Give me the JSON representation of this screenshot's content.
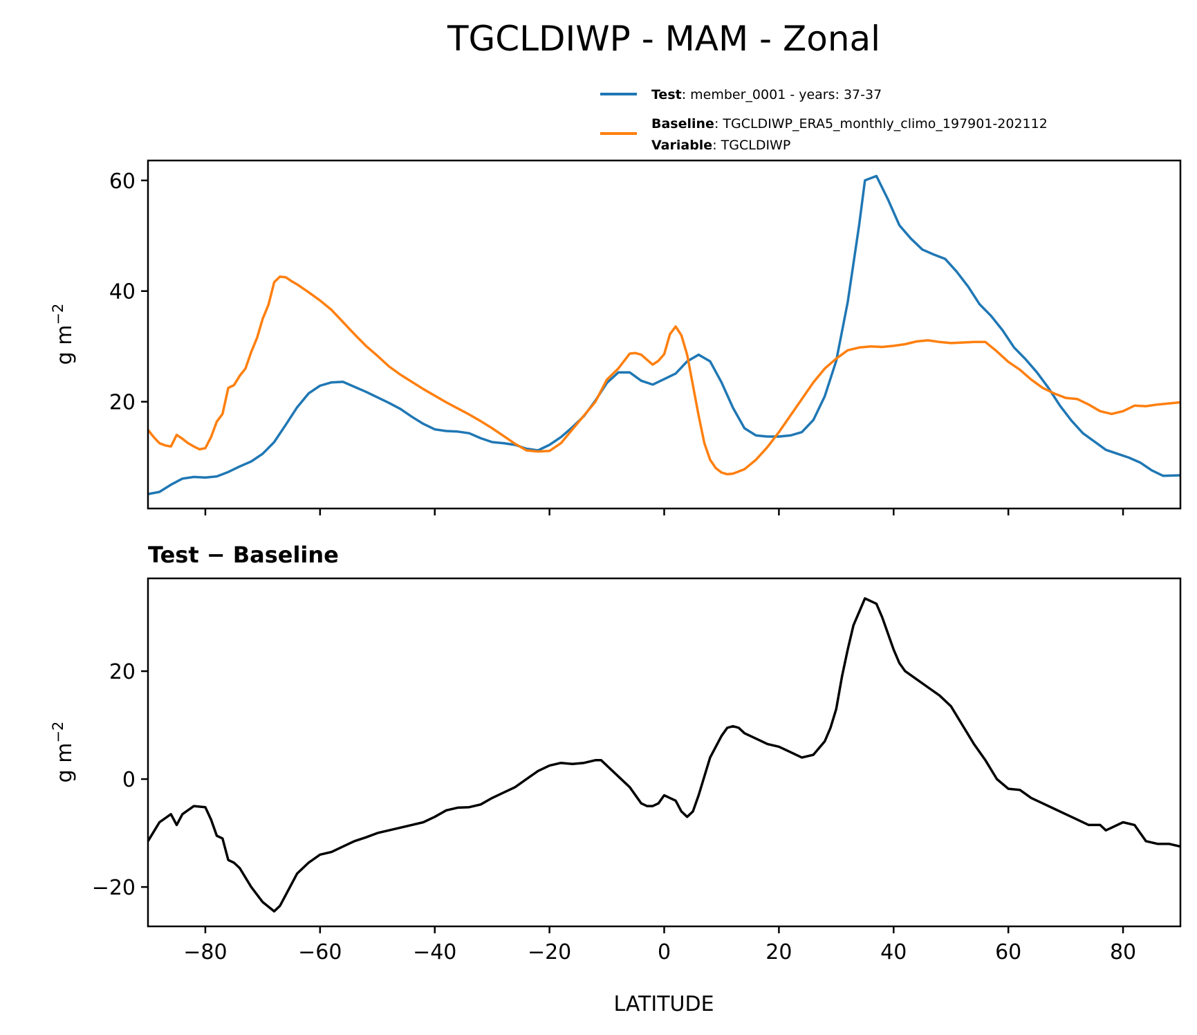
{
  "chart_data": [
    {
      "type": "line",
      "panel": "top",
      "title": "TGCLDIWP - MAM - Zonal",
      "xlabel": "",
      "ylabel": "g m⁻²",
      "xlim": [
        -90,
        90
      ],
      "ylim": [
        0.7,
        63.6
      ],
      "xticks": [
        -80,
        -60,
        -40,
        -20,
        0,
        20,
        40,
        60,
        80
      ],
      "yticks": [
        20,
        40,
        60
      ],
      "ytick_labels": [
        "20",
        "40",
        "60"
      ],
      "grid": false,
      "legend": {
        "placement": "top-right, above axes",
        "entries": [
          {
            "series": "Test",
            "bold": "Test",
            "text": ": member_0001 - years: 37-37"
          },
          {
            "series": "Baseline",
            "bold": "Baseline",
            "text": ": TGCLDIWP_ERA5_monthly_climo_197901-202112",
            "bold2": "Variable",
            "text2": ": TGCLDIWP"
          }
        ]
      },
      "series": [
        {
          "name": "Test",
          "color": "#1f77b4",
          "x": [
            -90,
            -88,
            -86,
            -84,
            -82,
            -80,
            -78,
            -76,
            -74,
            -72,
            -70,
            -68,
            -66,
            -64,
            -62,
            -60,
            -58,
            -56,
            -54,
            -52,
            -50,
            -48,
            -46,
            -44,
            -42,
            -40,
            -38,
            -36,
            -34,
            -32,
            -30,
            -28,
            -26,
            -24,
            -22,
            -20,
            -18,
            -16,
            -14,
            -12,
            -10,
            -8,
            -6,
            -4,
            -2,
            0,
            2,
            4,
            6,
            8,
            10,
            12,
            14,
            16,
            18,
            20,
            22,
            24,
            26,
            28,
            30,
            32,
            34,
            35,
            37,
            39,
            41,
            43,
            45,
            47,
            49,
            51,
            53,
            55,
            57,
            59,
            61,
            63,
            65,
            67,
            69,
            71,
            73,
            75,
            77,
            79,
            81,
            83,
            85,
            87,
            90
          ],
          "y": [
            3.3,
            3.7,
            5.0,
            6.1,
            6.4,
            6.3,
            6.5,
            7.3,
            8.3,
            9.2,
            10.6,
            12.7,
            15.8,
            19.0,
            21.5,
            22.9,
            23.5,
            23.6,
            22.7,
            21.8,
            20.8,
            19.8,
            18.7,
            17.3,
            16.0,
            15.0,
            14.7,
            14.6,
            14.3,
            13.4,
            12.7,
            12.5,
            12.2,
            11.5,
            11.2,
            12.2,
            13.6,
            15.4,
            17.4,
            20.2,
            23.4,
            25.3,
            25.3,
            23.8,
            23.1,
            24.1,
            25.1,
            27.3,
            28.5,
            27.3,
            23.5,
            18.9,
            15.2,
            13.9,
            13.7,
            13.7,
            13.9,
            14.5,
            16.7,
            21.0,
            27.4,
            38.0,
            52.0,
            60.0,
            60.8,
            56.6,
            51.9,
            49.5,
            47.5,
            46.6,
            45.8,
            43.5,
            40.8,
            37.6,
            35.5,
            32.9,
            29.8,
            27.7,
            25.3,
            22.5,
            19.3,
            16.6,
            14.3,
            12.8,
            11.3,
            10.6,
            9.9,
            9.0,
            7.6,
            6.6,
            6.7
          ]
        },
        {
          "name": "Baseline",
          "color": "#ff7f0e",
          "x": [
            -90,
            -89,
            -88,
            -87,
            -86,
            -85,
            -84,
            -83,
            -82,
            -81,
            -80,
            -79,
            -78,
            -77,
            -76,
            -75,
            -74,
            -73,
            -72,
            -71,
            -70,
            -69,
            -68,
            -67,
            -66,
            -65,
            -64,
            -62,
            -60,
            -58,
            -56,
            -54,
            -52,
            -50,
            -48,
            -46,
            -44,
            -42,
            -40,
            -38,
            -36,
            -34,
            -32,
            -30,
            -28,
            -26,
            -24,
            -22,
            -20,
            -18,
            -16,
            -14,
            -12,
            -10,
            -8,
            -6,
            -5,
            -4,
            -3,
            -2,
            -1,
            0,
            1,
            2,
            3,
            4,
            5,
            6,
            7,
            8,
            9,
            10,
            11,
            12,
            14,
            16,
            18,
            20,
            22,
            24,
            26,
            28,
            30,
            32,
            34,
            36,
            38,
            40,
            42,
            44,
            46,
            48,
            50,
            52,
            54,
            56,
            58,
            60,
            62,
            64,
            66,
            68,
            70,
            72,
            74,
            76,
            78,
            80,
            82,
            84,
            86,
            88,
            90
          ],
          "y": [
            14.9,
            13.6,
            12.5,
            12.1,
            11.9,
            14.0,
            13.3,
            12.5,
            11.9,
            11.4,
            11.6,
            13.6,
            16.4,
            17.8,
            22.5,
            23.0,
            24.7,
            26.0,
            29.0,
            31.5,
            35.0,
            37.5,
            41.6,
            42.6,
            42.5,
            41.8,
            41.2,
            39.8,
            38.3,
            36.6,
            34.4,
            32.2,
            30.1,
            28.3,
            26.4,
            24.9,
            23.6,
            22.3,
            21.1,
            19.9,
            18.8,
            17.7,
            16.5,
            15.2,
            13.8,
            12.4,
            11.2,
            11.0,
            11.1,
            12.5,
            15.0,
            17.5,
            20.0,
            24.0,
            26.0,
            28.7,
            28.8,
            28.5,
            27.6,
            26.7,
            27.4,
            28.6,
            32.2,
            33.6,
            32.0,
            28.5,
            23.0,
            17.5,
            12.5,
            9.5,
            8.0,
            7.2,
            6.9,
            7.0,
            7.8,
            9.5,
            11.8,
            14.5,
            17.5,
            20.5,
            23.5,
            26.0,
            27.8,
            29.3,
            29.8,
            30.0,
            29.9,
            30.1,
            30.4,
            30.9,
            31.1,
            30.8,
            30.6,
            30.7,
            30.8,
            30.8,
            29.1,
            27.2,
            25.8,
            24.0,
            22.5,
            21.5,
            20.7,
            20.5,
            19.5,
            18.3,
            17.8,
            18.3,
            19.3,
            19.2,
            19.5,
            19.7,
            19.9
          ]
        }
      ]
    },
    {
      "type": "line",
      "panel": "bottom",
      "title": "Test − Baseline",
      "xlabel": "LATITUDE",
      "ylabel": "g m⁻²",
      "xlim": [
        -90,
        90
      ],
      "ylim": [
        -27.3,
        37.2
      ],
      "xticks": [
        -80,
        -60,
        -40,
        -20,
        0,
        20,
        40,
        60,
        80
      ],
      "xtick_labels": [
        "−80",
        "−60",
        "−40",
        "−20",
        "0",
        "20",
        "40",
        "60",
        "80"
      ],
      "yticks": [
        -20,
        0,
        20
      ],
      "ytick_labels": [
        "−20",
        "0",
        "20"
      ],
      "grid": false,
      "series": [
        {
          "name": "Test - Baseline",
          "color": "#000000",
          "x": [
            -90,
            -88,
            -86,
            -85,
            -84,
            -82,
            -80,
            -79,
            -78,
            -77,
            -76,
            -75,
            -74,
            -72,
            -70,
            -68,
            -67,
            -66,
            -64,
            -62,
            -60,
            -58,
            -56,
            -54,
            -52,
            -50,
            -48,
            -46,
            -44,
            -42,
            -40,
            -38,
            -36,
            -34,
            -32,
            -30,
            -28,
            -26,
            -24,
            -22,
            -20,
            -18,
            -16,
            -14,
            -12,
            -11,
            -10,
            -8,
            -6,
            -4,
            -3,
            -2,
            -1,
            0,
            1,
            2,
            3,
            4,
            5,
            6,
            8,
            10,
            11,
            12,
            13,
            14,
            16,
            18,
            20,
            22,
            24,
            26,
            28,
            29,
            30,
            31,
            32,
            33,
            34,
            35,
            36,
            37,
            38,
            39,
            40,
            41,
            42,
            44,
            46,
            48,
            50,
            52,
            54,
            56,
            58,
            60,
            62,
            64,
            66,
            68,
            70,
            72,
            74,
            76,
            77,
            78,
            80,
            82,
            84,
            86,
            88,
            90
          ],
          "y": [
            -11.5,
            -8.0,
            -6.5,
            -8.5,
            -6.5,
            -5.0,
            -5.2,
            -7.5,
            -10.5,
            -11.0,
            -15.0,
            -15.5,
            -16.5,
            -20.0,
            -22.8,
            -24.5,
            -23.5,
            -21.5,
            -17.5,
            -15.5,
            -14.0,
            -13.5,
            -12.5,
            -11.5,
            -10.8,
            -10.0,
            -9.5,
            -9.0,
            -8.5,
            -8.0,
            -7.0,
            -5.8,
            -5.3,
            -5.2,
            -4.7,
            -3.5,
            -2.5,
            -1.5,
            0.0,
            1.5,
            2.5,
            3.0,
            2.8,
            3.0,
            3.5,
            3.5,
            2.5,
            0.5,
            -1.5,
            -4.5,
            -5.0,
            -5.0,
            -4.5,
            -3.0,
            -3.5,
            -4.0,
            -6.0,
            -7.0,
            -6.0,
            -3.0,
            4.0,
            8.0,
            9.5,
            9.8,
            9.5,
            8.5,
            7.5,
            6.5,
            6.0,
            5.0,
            4.0,
            4.5,
            7.0,
            9.5,
            13.0,
            19.0,
            24.0,
            28.5,
            31.0,
            33.5,
            33.0,
            32.5,
            30.0,
            27.0,
            24.0,
            21.5,
            20.0,
            18.5,
            17.0,
            15.5,
            13.5,
            10.0,
            6.5,
            3.5,
            0.0,
            -1.8,
            -2.0,
            -3.5,
            -4.5,
            -5.5,
            -6.5,
            -7.5,
            -8.5,
            -8.5,
            -9.5,
            -9.0,
            -8.0,
            -8.5,
            -11.5,
            -12.0,
            -12.0,
            -12.5
          ]
        }
      ]
    }
  ]
}
